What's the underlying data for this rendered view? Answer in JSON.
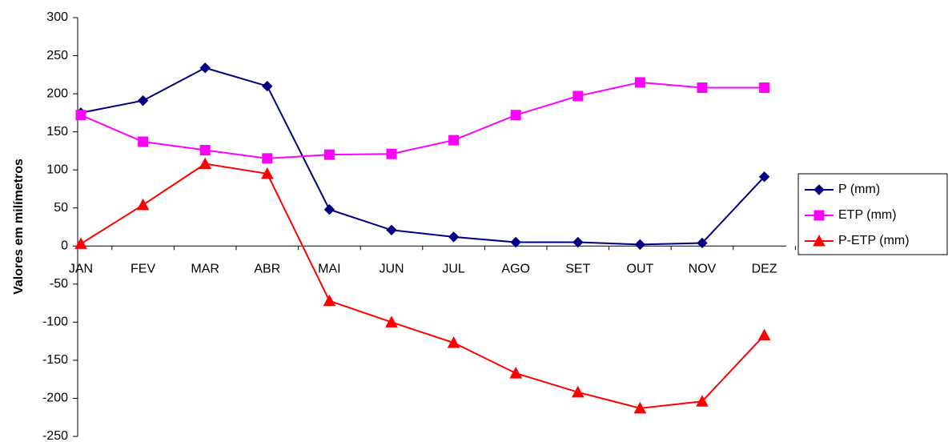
{
  "chart_data": {
    "type": "line",
    "y_label": "Valores em milímetros",
    "categories": [
      "JAN",
      "FEV",
      "MAR",
      "ABR",
      "MAI",
      "JUN",
      "JUL",
      "AGO",
      "SET",
      "OUT",
      "NOV",
      "DEZ"
    ],
    "series": [
      {
        "name": "P (mm)",
        "color": "#000080",
        "marker": "diamond",
        "values": [
          175,
          191,
          234,
          210,
          48,
          21,
          12,
          5,
          5,
          2,
          4,
          91
        ]
      },
      {
        "name": "ETP (mm)",
        "color": "#ff00ff",
        "marker": "square",
        "values": [
          172,
          137,
          126,
          115,
          120,
          121,
          139,
          172,
          197,
          215,
          208,
          208
        ]
      },
      {
        "name": "P-ETP (mm)",
        "color": "#ff0000",
        "marker": "triangle",
        "values": [
          3,
          54,
          108,
          95,
          -72,
          -100,
          -127,
          -167,
          -192,
          -213,
          -204,
          -117
        ]
      }
    ],
    "ylim": [
      -250,
      300
    ],
    "yticks": [
      -250,
      -200,
      -150,
      -100,
      -50,
      0,
      50,
      100,
      150,
      200,
      250,
      300
    ],
    "grid": false,
    "legend": "right"
  }
}
